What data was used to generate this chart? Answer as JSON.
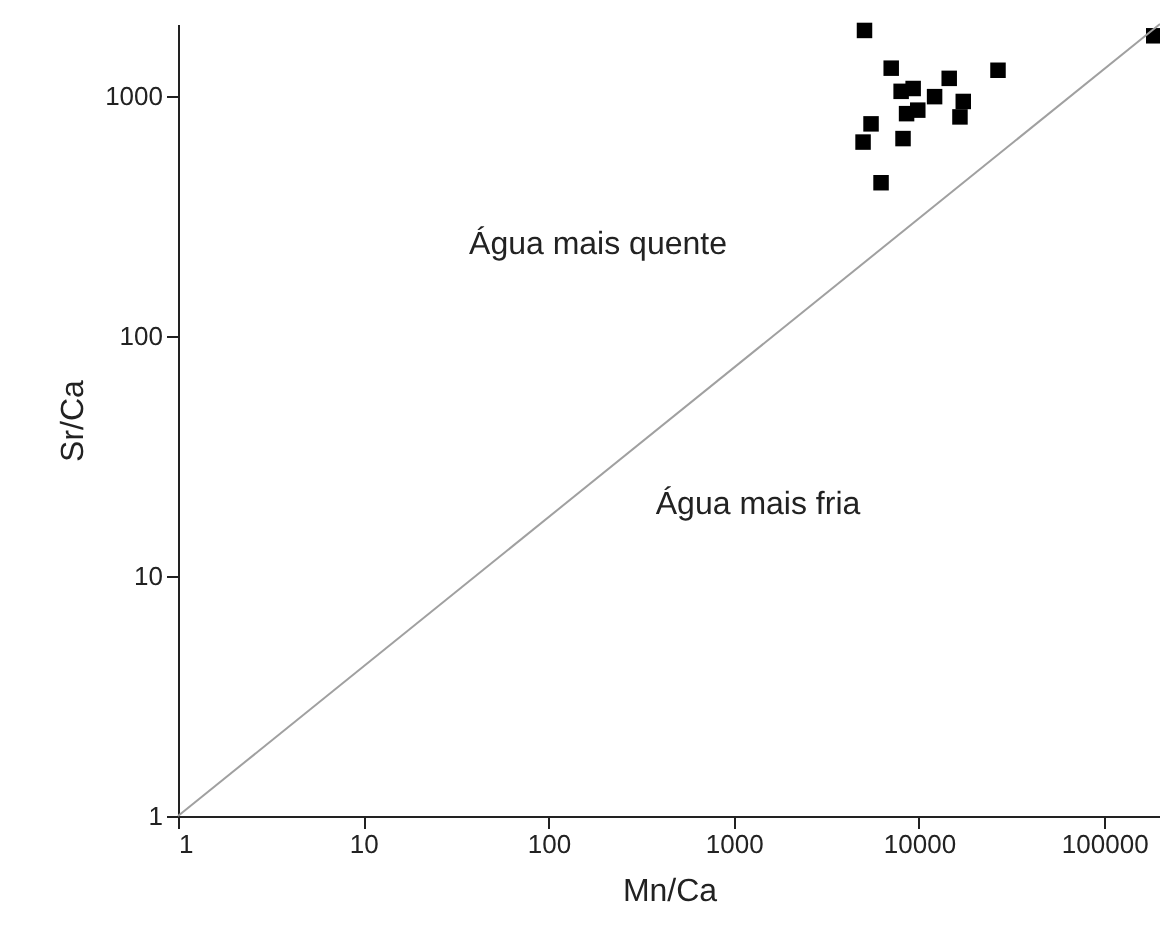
{
  "chart_data": {
    "type": "scatter",
    "xlabel": "Mn/Ca",
    "ylabel": "Sr/Ca",
    "log": "xy",
    "grid": false,
    "marker": "square",
    "xlim": [
      1,
      200000
    ],
    "ylim": [
      1,
      2000
    ],
    "xticks": [
      1,
      10,
      100,
      1000,
      10000,
      100000
    ],
    "yticks": [
      1,
      10,
      100,
      1000
    ],
    "annotations": [
      "Água mais quente",
      "Água mais fria"
    ],
    "series": [
      {
        "color": "#000000",
        "x": [
          5080,
          7080,
          14560,
          26700,
          8010,
          9300,
          11160,
          12140,
          17340,
          16640,
          8570,
          9850,
          5510,
          4990,
          8200,
          6240,
          185000
        ],
        "values": [
          1880,
          1309,
          1187,
          1283,
          1048,
          1077,
          null,
          996,
          951,
          820,
          846,
          875,
          767,
          644,
          666,
          436,
          1786
        ]
      },
      {
        "type": "line",
        "color": "#a0a0a0",
        "line_style": "solid",
        "marker": "none",
        "x": [
          1,
          200000
        ],
        "values": [
          1,
          2000
        ]
      }
    ]
  }
}
